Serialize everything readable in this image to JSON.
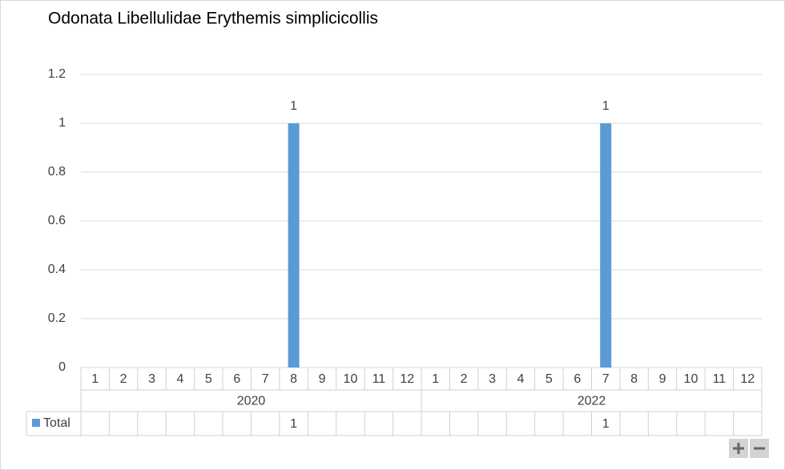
{
  "chart_data": {
    "type": "bar",
    "title": "Odonata Libellulidae Erythemis simplicicollis",
    "categories": [
      "1",
      "2",
      "3",
      "4",
      "5",
      "6",
      "7",
      "8",
      "9",
      "10",
      "11",
      "12",
      "1",
      "2",
      "3",
      "4",
      "5",
      "6",
      "7",
      "8",
      "9",
      "10",
      "11",
      "12"
    ],
    "groups": [
      "2020",
      "2022"
    ],
    "series": [
      {
        "name": "Total",
        "color": "#5b9bd5",
        "values": [
          null,
          null,
          null,
          null,
          null,
          null,
          null,
          1,
          null,
          null,
          null,
          null,
          null,
          null,
          null,
          null,
          null,
          null,
          1,
          null,
          null,
          null,
          null,
          null
        ]
      }
    ],
    "ylim": [
      0,
      1.2
    ],
    "yticks": [
      0,
      0.2,
      0.4,
      0.6,
      0.8,
      1,
      1.2
    ],
    "grid": true,
    "data_table": true
  }
}
